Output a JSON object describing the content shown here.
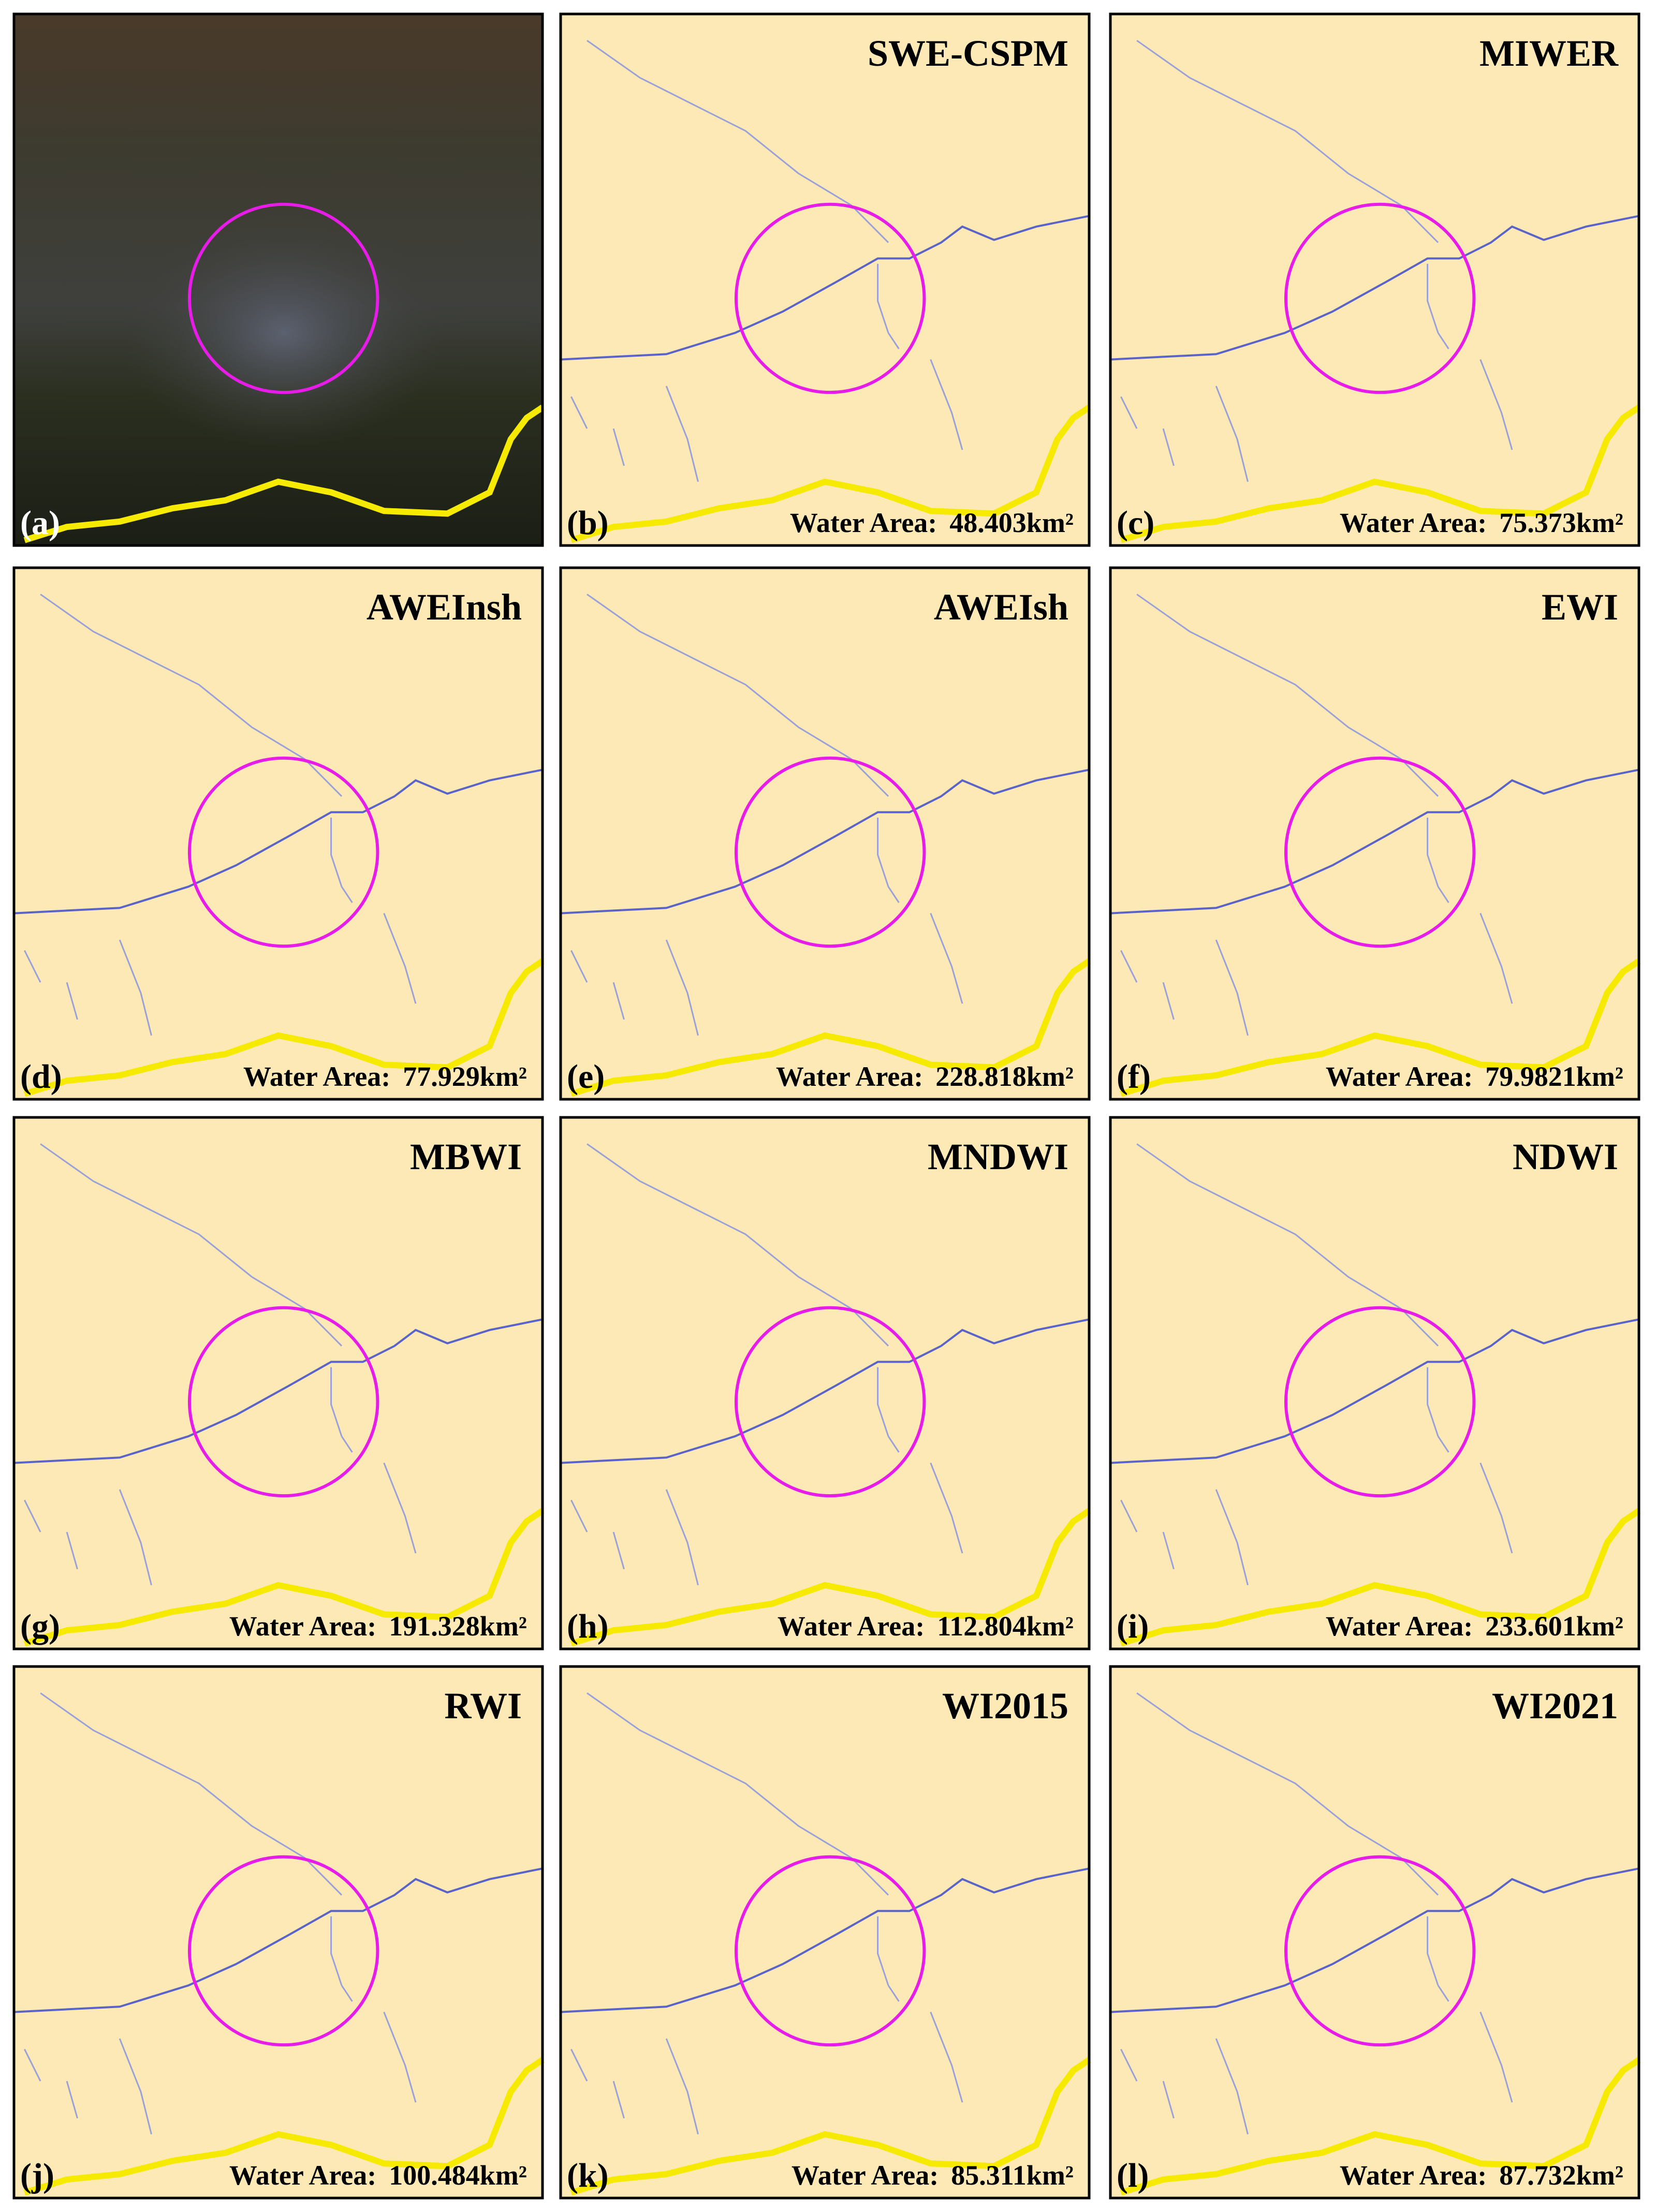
{
  "panels": [
    {
      "label": "(a)"
    },
    {
      "label": "(b)",
      "title": "SWE-CSPM",
      "area_label": "Water Area:",
      "area": "48.403km²"
    },
    {
      "label": "(c)",
      "title": "MIWER",
      "area_label": "Water Area:",
      "area": "75.373km²"
    },
    {
      "label": "(d)",
      "title": "AWEInsh",
      "area_label": "Water Area:",
      "area": "77.929km²"
    },
    {
      "label": "(e)",
      "title": "AWEIsh",
      "area_label": "Water Area:",
      "area": "228.818km²"
    },
    {
      "label": "(f)",
      "title": "EWI",
      "area_label": "Water Area:",
      "area": "79.9821km²"
    },
    {
      "label": "(g)",
      "title": "MBWI",
      "area_label": "Water Area:",
      "area": "191.328km²"
    },
    {
      "label": "(h)",
      "title": "MNDWI",
      "area_label": "Water Area:",
      "area": "112.804km²"
    },
    {
      "label": "(i)",
      "title": "NDWI",
      "area_label": "Water Area:",
      "area": "233.601km²"
    },
    {
      "label": "(j)",
      "title": "RWI",
      "area_label": "Water Area:",
      "area": "100.484km²"
    },
    {
      "label": "(k)",
      "title": "WI2015",
      "area_label": "Water Area:",
      "area": "85.311km²"
    },
    {
      "label": "(l)",
      "title": "WI2021",
      "area_label": "Water Area:",
      "area": "87.732km²"
    }
  ]
}
